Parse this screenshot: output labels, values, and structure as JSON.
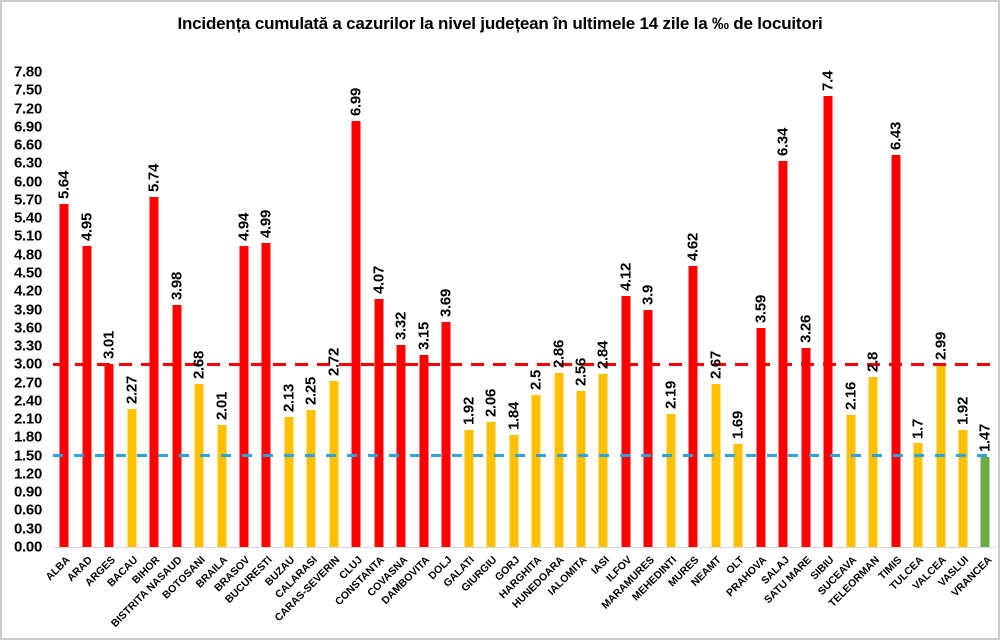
{
  "chart_data": {
    "type": "bar",
    "title": "Incidența cumulată a cazurilor la nivel județean în ultimele 14 zile la ‰ de locuitori",
    "xlabel": "",
    "ylabel": "",
    "ylim": [
      0,
      7.8
    ],
    "grid": false,
    "legend": "none",
    "value_labels_rotation": "vertical",
    "category_labels_rotation": 45,
    "yticks": [
      "0.00",
      "0.30",
      "0.60",
      "0.90",
      "1.20",
      "1.50",
      "1.80",
      "2.10",
      "2.40",
      "2.70",
      "3.00",
      "3.30",
      "3.60",
      "3.90",
      "4.20",
      "4.50",
      "4.80",
      "5.10",
      "5.40",
      "5.70",
      "6.00",
      "6.30",
      "6.60",
      "6.90",
      "7.20",
      "7.50",
      "7.80"
    ],
    "categories": [
      "ALBA",
      "ARAD",
      "ARGES",
      "BACAU",
      "BIHOR",
      "BISTRITA NASAUD",
      "BOTOSANI",
      "BRAILA",
      "BRASOV",
      "BUCURESTI",
      "BUZAU",
      "CALARASI",
      "CARAS-SEVERIN",
      "CLUJ",
      "CONSTANTA",
      "COVASNA",
      "DAMBOVITA",
      "DOLJ",
      "GALATI",
      "GIURGIU",
      "GORJ",
      "HARGHITA",
      "HUNEDOARA",
      "IALOMITA",
      "IASI",
      "ILFOV",
      "MARAMURES",
      "MEHEDINTI",
      "MURES",
      "NEAMT",
      "OLT",
      "PRAHOVA",
      "SALAJ",
      "SATU MARE",
      "SIBIU",
      "SUCEAVA",
      "TELEORMAN",
      "TIMIS",
      "TULCEA",
      "VALCEA",
      "VASLUI",
      "VRANCEA"
    ],
    "values": [
      5.64,
      4.95,
      3.01,
      2.27,
      5.74,
      3.98,
      2.68,
      2.01,
      4.94,
      4.99,
      2.13,
      2.25,
      2.72,
      6.99,
      4.07,
      3.32,
      3.15,
      3.69,
      1.92,
      2.06,
      1.84,
      2.5,
      2.86,
      2.56,
      2.84,
      4.12,
      3.9,
      2.19,
      4.62,
      2.67,
      1.69,
      3.59,
      6.34,
      3.26,
      7.4,
      2.16,
      2.8,
      6.43,
      1.7,
      2.99,
      1.92,
      1.47
    ],
    "value_labels": [
      "5.64",
      "4.95",
      "3.01",
      "2.27",
      "5.74",
      "3.98",
      "2.68",
      "2.01",
      "4.94",
      "4.99",
      "2.13",
      "2.25",
      "2.72",
      "6.99",
      "4.07",
      "3.32",
      "3.15",
      "3.69",
      "1.92",
      "2.06",
      "1.84",
      "2.5",
      "2.86",
      "2.56",
      "2.84",
      "4.12",
      "3.9",
      "2.19",
      "4.62",
      "2.67",
      "1.69",
      "3.59",
      "6.34",
      "3.26",
      "7.4",
      "2.16",
      "2.8",
      "6.43",
      "1.7",
      "2.99",
      "1.92",
      "1.47"
    ],
    "bar_colors": [
      "red",
      "red",
      "red",
      "yellow",
      "red",
      "red",
      "yellow",
      "yellow",
      "red",
      "red",
      "yellow",
      "yellow",
      "yellow",
      "red",
      "red",
      "red",
      "red",
      "red",
      "yellow",
      "yellow",
      "yellow",
      "yellow",
      "yellow",
      "yellow",
      "yellow",
      "red",
      "red",
      "yellow",
      "red",
      "yellow",
      "yellow",
      "red",
      "red",
      "red",
      "red",
      "yellow",
      "yellow",
      "red",
      "yellow",
      "yellow",
      "yellow",
      "green"
    ],
    "colors": {
      "red": "#FF0000",
      "yellow": "#FFC000",
      "green": "#6FAC47",
      "axis_line": "#d9d9d9",
      "text": "#000000"
    },
    "reference_lines": [
      {
        "name": "upper-threshold",
        "value": 3.0,
        "color": "#FF0000",
        "style": "dashed",
        "dash": [
          13,
          9
        ]
      },
      {
        "name": "lower-threshold",
        "value": 1.5,
        "color": "#2BA3DC",
        "style": "dashed",
        "dash": [
          10,
          11
        ]
      }
    ]
  }
}
